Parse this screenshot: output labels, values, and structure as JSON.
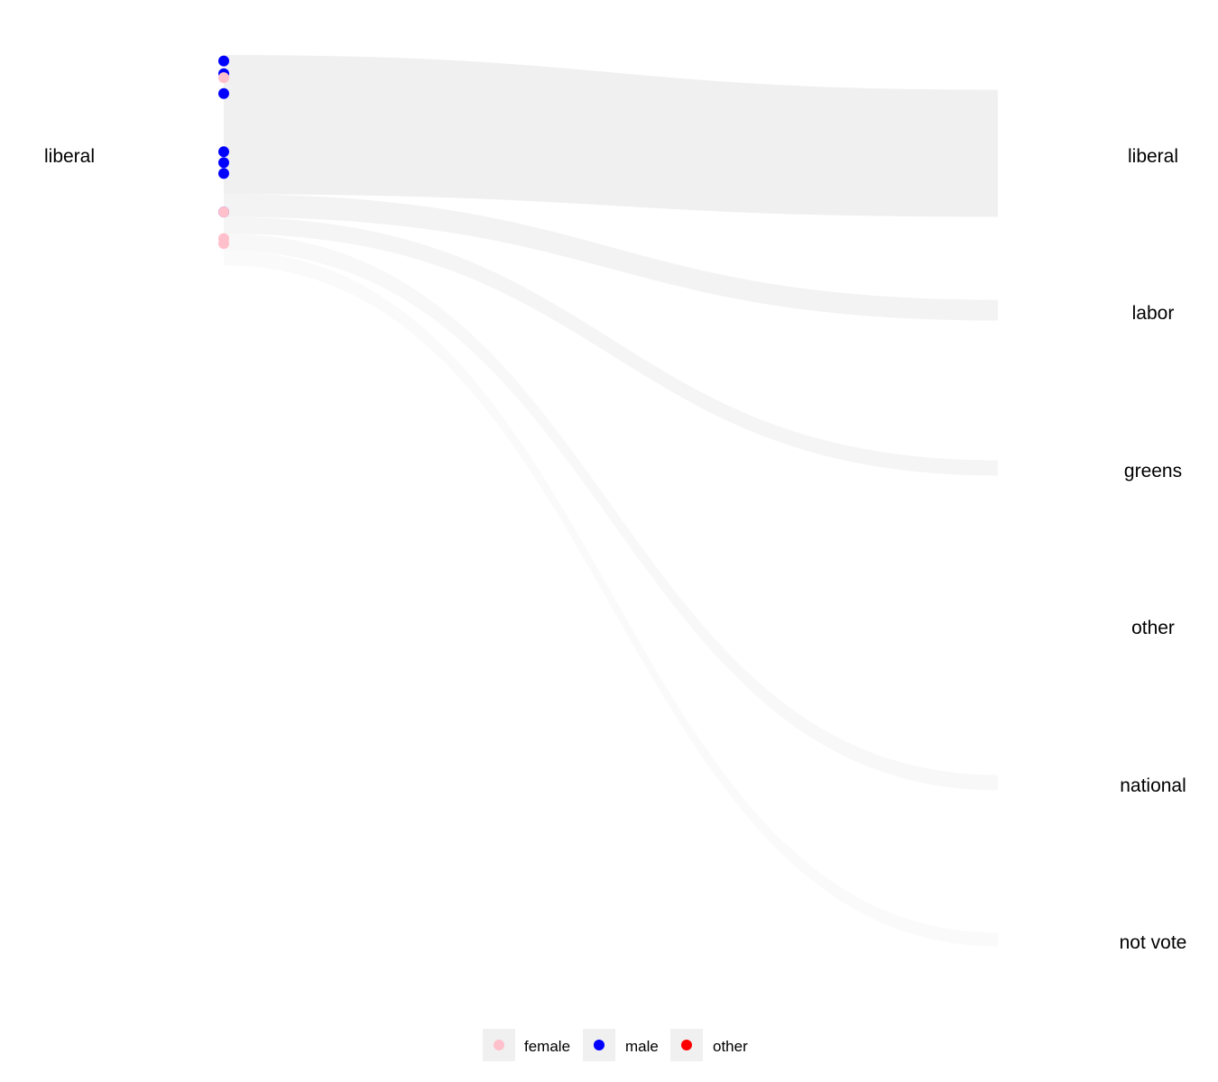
{
  "chart_data": {
    "type": "alluvial",
    "title": "",
    "source_nodes": [
      "liberal"
    ],
    "target_nodes": [
      "liberal",
      "labor",
      "greens",
      "other",
      "national",
      "not vote"
    ],
    "flows": [
      {
        "from": "liberal",
        "to": "liberal",
        "share": 0.705
      },
      {
        "from": "liberal",
        "to": "labor",
        "share": 0.115
      },
      {
        "from": "liberal",
        "to": "greens",
        "share": 0.085
      },
      {
        "from": "liberal",
        "to": "national",
        "share": 0.085
      },
      {
        "from": "liberal",
        "to": "not vote",
        "share": 0.075
      }
    ],
    "points": [
      {
        "gender": "male",
        "rank": 0.03
      },
      {
        "gender": "male",
        "rank": 0.095
      },
      {
        "gender": "female",
        "rank": 0.115
      },
      {
        "gender": "male",
        "rank": 0.195
      },
      {
        "gender": "male",
        "rank": 0.49
      },
      {
        "gender": "male",
        "rank": 0.545
      },
      {
        "gender": "male",
        "rank": 0.6
      },
      {
        "gender": "male",
        "rank": 0.795
      },
      {
        "gender": "female",
        "rank": 0.795
      },
      {
        "gender": "female",
        "rank": 0.93
      },
      {
        "gender": "female",
        "rank": 0.955
      }
    ],
    "legend": {
      "placement": "bottom",
      "items": [
        {
          "label": "female",
          "color": "#FFC0CB"
        },
        {
          "label": "male",
          "color": "#0000FF"
        },
        {
          "label": "other",
          "color": "#FF0000"
        }
      ]
    },
    "flow_colors": [
      "#f0f0f0",
      "#f3f3f3",
      "#f5f5f5",
      "#f8f8f8",
      "#fafafa"
    ]
  }
}
